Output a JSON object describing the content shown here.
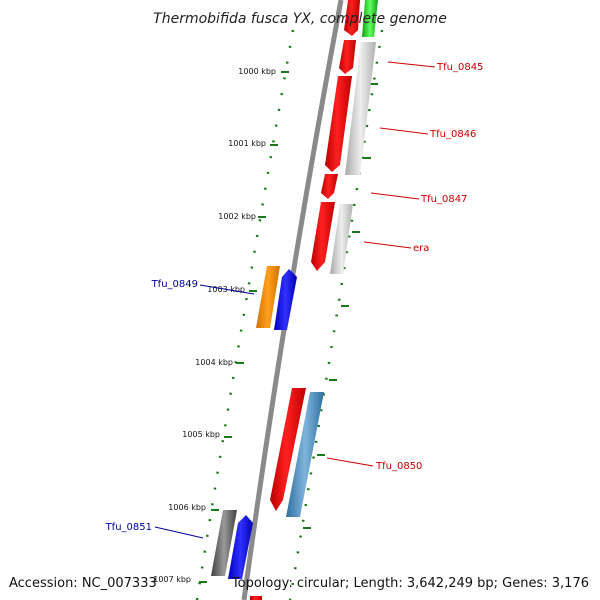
{
  "title": "Thermobifida fusca YX, complete genome",
  "footer": {
    "accession": "Accession: NC_007333",
    "summary": "Topology: circular; Length: 3,642,249 bp; Genes: 3,176"
  },
  "colors": {
    "forward_label": "#cc0000",
    "reverse_label": "#000099",
    "backbone": "#8a8a8a",
    "tick": "#1a7a1a"
  },
  "ticks": [
    "1000 kbp",
    "1001 kbp",
    "1002 kbp",
    "1003 kbp",
    "1004 kbp",
    "1005 kbp",
    "1006 kbp",
    "1007 kbp"
  ],
  "gene_labels": [
    {
      "name": "Tfu_0845",
      "strand": "forward"
    },
    {
      "name": "Tfu_0846",
      "strand": "forward"
    },
    {
      "name": "Tfu_0847",
      "strand": "forward"
    },
    {
      "name": "era",
      "strand": "forward"
    },
    {
      "name": "Tfu_0849",
      "strand": "reverse"
    },
    {
      "name": "Tfu_0850",
      "strand": "forward"
    },
    {
      "name": "Tfu_0851",
      "strand": "reverse"
    }
  ]
}
